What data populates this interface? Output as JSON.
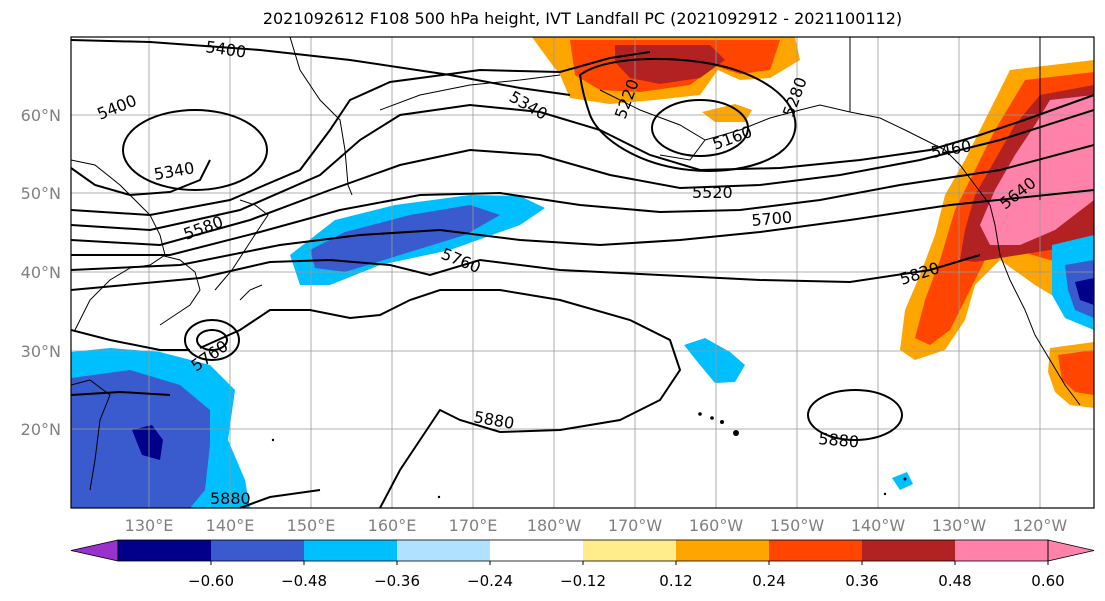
{
  "title": "2021092612 F108 500 hPa height, IVT Landfall PC (2021092912 - 2021100112)",
  "lat_labels": [
    "60°N",
    "50°N",
    "40°N",
    "30°N",
    "20°N"
  ],
  "lon_labels": [
    "130°E",
    "140°E",
    "150°E",
    "160°E",
    "170°E",
    "180°W",
    "170°W",
    "160°W",
    "150°W",
    "140°W",
    "130°W",
    "120°W"
  ],
  "contour_labels": {
    "c5400a": "5400",
    "c5400b": "5400",
    "c5340a": "5340",
    "c5340b": "5340",
    "c5580": "5580",
    "c5760": "5760",
    "c5160": "5160",
    "c5760b": "5760",
    "c5880a": "5880",
    "c5880b": "5880",
    "c5880c": "5880",
    "c5520": "5520",
    "c5700": "5700",
    "c5820": "5820",
    "c5460": "5460",
    "c5640": "5640",
    "c5220": "5220",
    "c5280": "5280"
  },
  "colorbar": {
    "colors": [
      "#9932cc",
      "#00008b",
      "#3a5bcd",
      "#00bfff",
      "#b0e2ff",
      "#ffffff",
      "#ffec8b",
      "#ffa500",
      "#ff4500",
      "#b22222",
      "#ff82ab",
      "#ff82ab"
    ],
    "tick_labels": [
      "−0.60",
      "−0.48",
      "−0.36",
      "−0.24",
      "−0.12",
      "0.12",
      "0.24",
      "0.36",
      "0.48",
      "0.60"
    ]
  }
}
